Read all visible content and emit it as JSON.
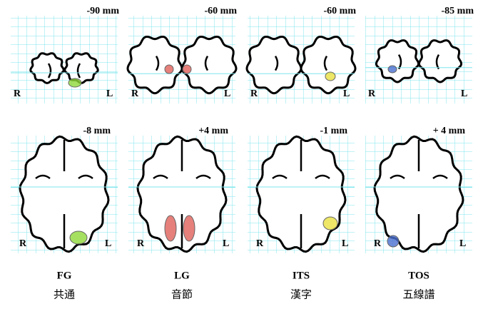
{
  "right_label": "R",
  "left_label": "L",
  "panels": [
    {
      "region": "FG",
      "word": "共通",
      "coronal_depth": "-90 mm",
      "axial_depth": "-8 mm",
      "blob_color": "#8fd83a"
    },
    {
      "region": "LG",
      "word": "音節",
      "coronal_depth": "-60 mm",
      "axial_depth": "+4 mm",
      "blob_color": "#e0605a"
    },
    {
      "region": "ITS",
      "word": "漢字",
      "coronal_depth": "-60 mm",
      "axial_depth": "-1 mm",
      "blob_color": "#e8e040"
    },
    {
      "region": "TOS",
      "word": "五線譜",
      "coronal_depth": "-85 mm",
      "axial_depth": "+ 4 mm",
      "blob_color": "#4a6fd0"
    }
  ]
}
